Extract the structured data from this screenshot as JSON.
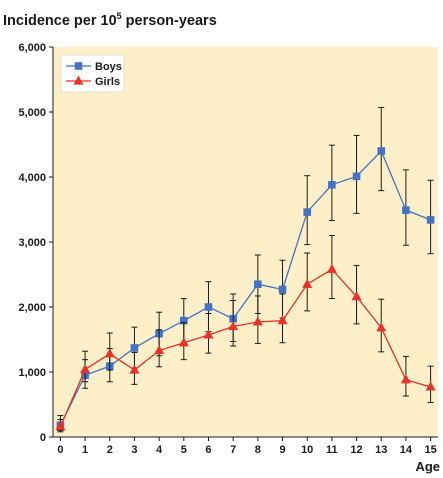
{
  "chart_data": {
    "type": "line",
    "title_main": "Incidence per 10",
    "title_sup": "5",
    "title_tail": " person-years",
    "xlabel": "Age",
    "ylabel": "",
    "x": [
      0,
      1,
      2,
      3,
      4,
      5,
      6,
      7,
      8,
      9,
      10,
      11,
      12,
      13,
      14,
      15
    ],
    "x_tick_labels": [
      "0",
      "1",
      "2",
      "3",
      "4",
      "5",
      "6",
      "7",
      "8",
      "9",
      "10",
      "11",
      "12",
      "13",
      "14",
      "15"
    ],
    "y_tick_values": [
      0,
      1000,
      2000,
      3000,
      4000,
      5000,
      6000
    ],
    "y_tick_labels": [
      "0",
      "1,000",
      "2,000",
      "3,000",
      "4,000",
      "5,000",
      "6,000"
    ],
    "ylim": [
      0,
      6000
    ],
    "xlim": [
      -0.3,
      15.3
    ],
    "grid": false,
    "legend_position": "top-left",
    "background_color": "#fdf0c9",
    "series": [
      {
        "name": "Boys",
        "color": "#4472c4",
        "marker": "square",
        "values": [
          180,
          950,
          1090,
          1370,
          1590,
          1790,
          2000,
          1820,
          2350,
          2270,
          3460,
          3880,
          4010,
          4400,
          3490,
          3340
        ],
        "error_low": [
          100,
          750,
          850,
          1060,
          1250,
          1430,
          1620,
          1470,
          1900,
          1830,
          2960,
          3330,
          3440,
          3790,
          2950,
          2820
        ],
        "error_high": [
          330,
          1190,
          1360,
          1690,
          1920,
          2130,
          2390,
          2200,
          2800,
          2720,
          4020,
          4490,
          4640,
          5070,
          4110,
          3950
        ]
      },
      {
        "name": "Girls",
        "color": "#e8322a",
        "marker": "triangle",
        "values": [
          160,
          1040,
          1280,
          1030,
          1330,
          1450,
          1570,
          1700,
          1770,
          1790,
          2350,
          2580,
          2160,
          1680,
          880,
          770
        ],
        "error_low": [
          80,
          850,
          1030,
          810,
          1080,
          1190,
          1290,
          1400,
          1440,
          1450,
          1940,
          2130,
          1740,
          1310,
          630,
          530
        ],
        "error_high": [
          270,
          1320,
          1600,
          1300,
          1650,
          1760,
          1900,
          2100,
          2170,
          2200,
          2830,
          3100,
          2640,
          2120,
          1240,
          1090
        ]
      }
    ]
  }
}
